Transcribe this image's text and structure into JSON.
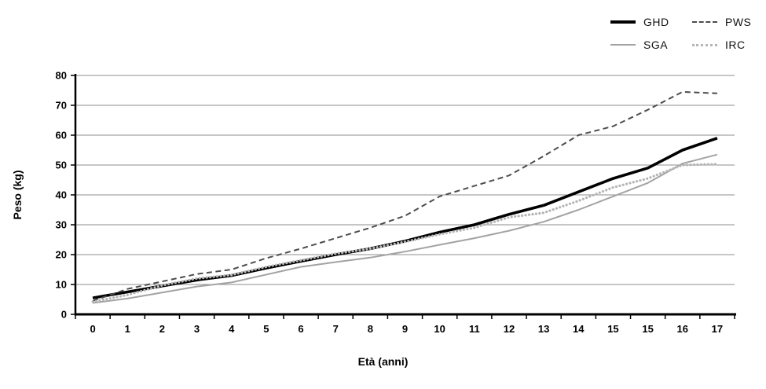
{
  "chart_data": {
    "type": "line",
    "title": "",
    "xlabel": "Età (anni)",
    "ylabel": "Peso (kg)",
    "categories": [
      "0",
      "1",
      "2",
      "3",
      "4",
      "5",
      "6",
      "7",
      "8",
      "9",
      "10",
      "11",
      "12",
      "13",
      "14",
      "15",
      "15",
      "16",
      "17"
    ],
    "yticks": [
      0,
      10,
      20,
      30,
      40,
      50,
      60,
      70,
      80
    ],
    "ylim": [
      0,
      80
    ],
    "grid": "horizontal-only",
    "gridline_color": "#8c8c8c",
    "axis_color": "#000000",
    "legend_position": "top-right",
    "series": [
      {
        "name": "GHD",
        "color": "#000000",
        "style": "solid",
        "width": 3.6,
        "values": [
          5.5,
          7.5,
          9.5,
          11.5,
          13,
          15.5,
          17.8,
          20,
          22,
          24.5,
          27.5,
          30,
          33.5,
          36.5,
          41,
          45.5,
          49,
          55,
          59
        ]
      },
      {
        "name": "PWS",
        "color": "#4d4d4d",
        "style": "dashed",
        "width": 2,
        "values": [
          4.5,
          8.5,
          11,
          13.5,
          15,
          18.8,
          22,
          25.5,
          29,
          33,
          39.5,
          43,
          46.5,
          53,
          60,
          63,
          68.5,
          74.5,
          74
        ]
      },
      {
        "name": "SGA",
        "color": "#a3a3a3",
        "style": "solid",
        "width": 2,
        "values": [
          3.8,
          5.3,
          7.3,
          9.3,
          10.7,
          13.3,
          15.9,
          17.5,
          19,
          21,
          23.3,
          25.5,
          28,
          31,
          35,
          39.5,
          44,
          50.5,
          53.5
        ]
      },
      {
        "name": "IRC",
        "color": "#b5b5b5",
        "style": "dotted",
        "width": 3.2,
        "values": [
          4.2,
          6.5,
          9.7,
          12,
          13.2,
          15.9,
          18.1,
          20.3,
          22,
          24.3,
          26.8,
          29,
          32.5,
          34,
          38,
          42.5,
          45.5,
          50,
          50.3
        ]
      }
    ]
  }
}
